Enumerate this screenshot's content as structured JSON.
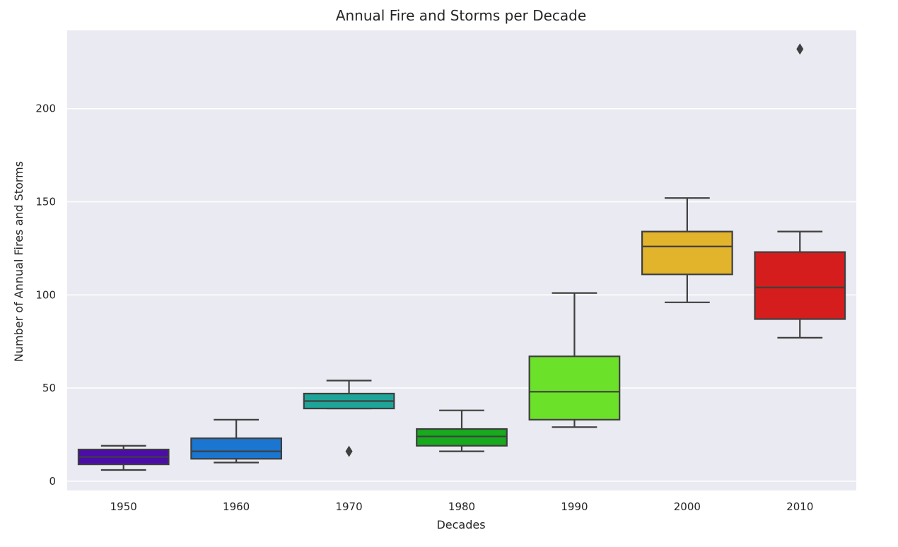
{
  "chart_data": {
    "type": "box",
    "title": "Annual Fire and Storms per Decade",
    "xlabel": "Decades",
    "ylabel": "Number of Annual Fires and Storms",
    "ylim": [
      -5,
      242
    ],
    "yticks": [
      0,
      50,
      100,
      150,
      200
    ],
    "grid": true,
    "categories": [
      "1950",
      "1960",
      "1970",
      "1980",
      "1990",
      "2000",
      "2010"
    ],
    "boxes": [
      {
        "category": "1950",
        "whisker_low": 6,
        "q1": 9,
        "median": 13,
        "q3": 17,
        "whisker_high": 19,
        "outliers": [],
        "color": "#4b0ca8"
      },
      {
        "category": "1960",
        "whisker_low": 10,
        "q1": 12,
        "median": 16,
        "q3": 23,
        "whisker_high": 33,
        "outliers": [],
        "color": "#1a76d0"
      },
      {
        "category": "1970",
        "whisker_low": 39,
        "q1": 39,
        "median": 43,
        "q3": 47,
        "whisker_high": 54,
        "outliers": [
          16
        ],
        "color": "#1ea59a"
      },
      {
        "category": "1980",
        "whisker_low": 16,
        "q1": 19,
        "median": 24,
        "q3": 28,
        "whisker_high": 38,
        "outliers": [],
        "color": "#16aa1c"
      },
      {
        "category": "1990",
        "whisker_low": 29,
        "q1": 33,
        "median": 48,
        "q3": 67,
        "whisker_high": 101,
        "outliers": [],
        "color": "#6ce12a"
      },
      {
        "category": "2000",
        "whisker_low": 96,
        "q1": 111,
        "median": 126,
        "q3": 134,
        "whisker_high": 152,
        "outliers": [],
        "color": "#e2b42b"
      },
      {
        "category": "2010",
        "whisker_low": 77,
        "q1": 87,
        "median": 104,
        "q3": 123,
        "whisker_high": 134,
        "outliers": [
          232
        ],
        "color": "#d51d1d"
      }
    ]
  }
}
